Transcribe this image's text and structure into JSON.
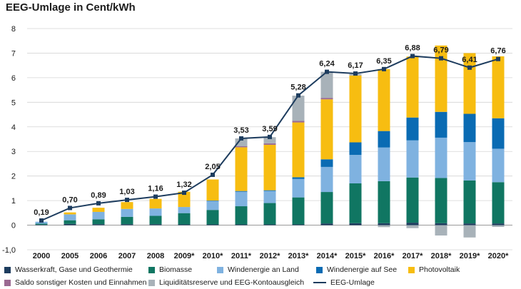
{
  "chart_data": {
    "type": "bar",
    "title": "EEG-Umlage in Cent/kWh",
    "categories": [
      "2000",
      "2005",
      "2006",
      "2007",
      "2008",
      "2009*",
      "2010*",
      "2011*",
      "2012*",
      "2013*",
      "2014*",
      "2015*",
      "2016*",
      "2017*",
      "2018*",
      "2019*",
      "2020*"
    ],
    "ylim": [
      -1,
      8
    ],
    "yticks": [
      "-1,0",
      "0",
      "1",
      "2",
      "3",
      "4",
      "5",
      "6",
      "7",
      "8"
    ],
    "series": [
      {
        "name": "Wasserkraft, Gase und Geothermie",
        "color": "#1d3c5e",
        "values": [
          0.02,
          0.05,
          0.04,
          0.04,
          0.04,
          0.03,
          0.03,
          0.03,
          0.03,
          0.03,
          0.07,
          0.08,
          0.08,
          0.1,
          0.08,
          0.07,
          0.07
        ]
      },
      {
        "name": "Biomasse",
        "color": "#107662",
        "values": [
          0.04,
          0.15,
          0.2,
          0.3,
          0.34,
          0.46,
          0.59,
          0.74,
          0.87,
          1.1,
          1.28,
          1.62,
          1.71,
          1.84,
          1.84,
          1.75,
          1.68
        ]
      },
      {
        "name": "Windenergie an Land",
        "color": "#7fb2e0",
        "values": [
          0.08,
          0.24,
          0.3,
          0.32,
          0.3,
          0.25,
          0.37,
          0.59,
          0.49,
          0.75,
          1.02,
          1.16,
          1.37,
          1.51,
          1.64,
          1.56,
          1.36
        ]
      },
      {
        "name": "Windenergie auf See",
        "color": "#0a6bb3",
        "values": [
          0,
          0,
          0,
          0,
          0,
          0,
          0.01,
          0.03,
          0.03,
          0.07,
          0.31,
          0.51,
          0.67,
          0.93,
          1.05,
          1.15,
          1.24
        ]
      },
      {
        "name": "Photovoltaik",
        "color": "#f7bd11",
        "values": [
          0,
          0.08,
          0.17,
          0.28,
          0.39,
          0.62,
          0.86,
          1.78,
          1.85,
          2.23,
          2.44,
          2.72,
          2.52,
          2.48,
          2.7,
          2.47,
          2.52
        ]
      },
      {
        "name": "Saldo sonstiger Kosten und Einnahmen",
        "color": "#9b6a92",
        "values": [
          0,
          0,
          0,
          0,
          0,
          0,
          0,
          0.04,
          0.06,
          0.06,
          0.06,
          0,
          0,
          0,
          0,
          0,
          0
        ]
      },
      {
        "name": "Liquiditätsreserve und EEG-Kontoausgleich",
        "color": "#a8b2b9",
        "values": [
          0,
          0,
          0,
          0,
          0,
          0,
          0,
          0.32,
          0.25,
          1.03,
          1.06,
          0.06,
          0,
          0,
          -0.42,
          -0.5,
          -0.07
        ]
      },
      {
        "name": "EEG-Umlage",
        "color": "#1d3c5e",
        "kind": "line",
        "values": [
          0.19,
          0.7,
          0.89,
          1.03,
          1.16,
          1.32,
          2.05,
          3.53,
          3.59,
          5.28,
          6.24,
          6.17,
          6.35,
          6.88,
          6.79,
          6.41,
          6.76
        ]
      }
    ],
    "negative_extra": [
      0,
      0,
      0,
      0,
      0,
      0,
      0,
      0,
      0,
      0,
      0,
      0,
      -0.08,
      -0.12,
      0,
      0,
      0
    ],
    "data_labels": [
      "0,19",
      "0,70",
      "0,89",
      "1,03",
      "1,16",
      "1,32",
      "2,05",
      "3,53",
      "3,59",
      "5,28",
      "6,24",
      "6,17",
      "6,35",
      "6,88",
      "6,79",
      "6,41",
      "6,76"
    ],
    "xlabel": "",
    "ylabel": "Cent/kWh",
    "legend_position": "bottom"
  }
}
